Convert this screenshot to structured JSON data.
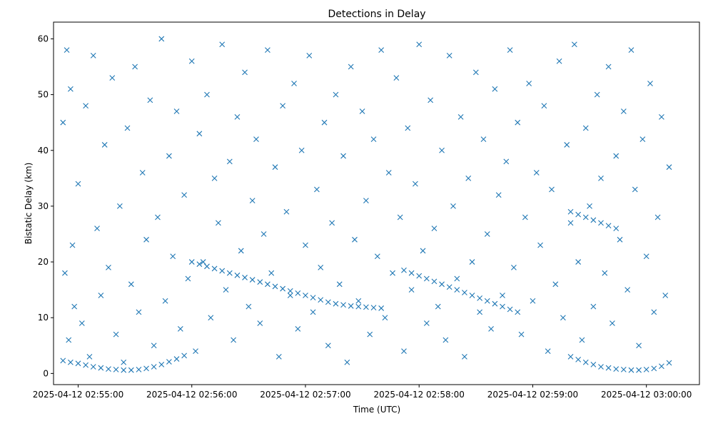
{
  "chart_data": {
    "type": "scatter",
    "title": "Detections in Delay",
    "xlabel": "Time (UTC)",
    "ylabel": "Bistatic Delay (km)",
    "x_unit": "UTC datetime",
    "xlim": [
      "2025-04-12 02:54:47",
      "2025-04-12 03:00:28"
    ],
    "ylim": [
      -2,
      63
    ],
    "x_ticks": [
      "2025-04-12 02:55:00",
      "2025-04-12 02:56:00",
      "2025-04-12 02:57:00",
      "2025-04-12 02:58:00",
      "2025-04-12 02:59:00",
      "2025-04-12 03:00:00"
    ],
    "y_ticks": [
      0,
      10,
      20,
      30,
      40,
      50,
      60
    ],
    "grid": false,
    "legend": "none",
    "marker": "x",
    "color": "#1f77b4",
    "series": [
      {
        "x": [
          "2025-04-12 02:54:52",
          "2025-04-12 02:54:53",
          "2025-04-12 02:54:54",
          "2025-04-12 02:54:55",
          "2025-04-12 02:54:56",
          "2025-04-12 02:54:57",
          "2025-04-12 02:54:58",
          "2025-04-12 02:55:00",
          "2025-04-12 02:55:02",
          "2025-04-12 02:55:04",
          "2025-04-12 02:55:06",
          "2025-04-12 02:55:08",
          "2025-04-12 02:55:10",
          "2025-04-12 02:55:12",
          "2025-04-12 02:55:14",
          "2025-04-12 02:55:16",
          "2025-04-12 02:55:18",
          "2025-04-12 02:55:20",
          "2025-04-12 02:55:22",
          "2025-04-12 02:55:24",
          "2025-04-12 02:55:26",
          "2025-04-12 02:55:28",
          "2025-04-12 02:55:30",
          "2025-04-12 02:55:32",
          "2025-04-12 02:55:34",
          "2025-04-12 02:55:36",
          "2025-04-12 02:55:38",
          "2025-04-12 02:55:40",
          "2025-04-12 02:55:42",
          "2025-04-12 02:55:44",
          "2025-04-12 02:55:46",
          "2025-04-12 02:55:48",
          "2025-04-12 02:55:50",
          "2025-04-12 02:55:52",
          "2025-04-12 02:55:54",
          "2025-04-12 02:55:56",
          "2025-04-12 02:55:58",
          "2025-04-12 02:56:00",
          "2025-04-12 02:56:02",
          "2025-04-12 02:56:04",
          "2025-04-12 02:56:06",
          "2025-04-12 02:56:08",
          "2025-04-12 02:56:10",
          "2025-04-12 02:56:12",
          "2025-04-12 02:56:14",
          "2025-04-12 02:56:16",
          "2025-04-12 02:56:18",
          "2025-04-12 02:56:20",
          "2025-04-12 02:56:22",
          "2025-04-12 02:56:24",
          "2025-04-12 02:56:26",
          "2025-04-12 02:56:28",
          "2025-04-12 02:56:30",
          "2025-04-12 02:56:32",
          "2025-04-12 02:56:34",
          "2025-04-12 02:56:36",
          "2025-04-12 02:56:38",
          "2025-04-12 02:56:40",
          "2025-04-12 02:56:42",
          "2025-04-12 02:56:44",
          "2025-04-12 02:56:46",
          "2025-04-12 02:56:48",
          "2025-04-12 02:56:50",
          "2025-04-12 02:56:52",
          "2025-04-12 02:56:54",
          "2025-04-12 02:56:56",
          "2025-04-12 02:56:58",
          "2025-04-12 02:57:00",
          "2025-04-12 02:57:02",
          "2025-04-12 02:57:04",
          "2025-04-12 02:57:06",
          "2025-04-12 02:57:08",
          "2025-04-12 02:57:10",
          "2025-04-12 02:57:12",
          "2025-04-12 02:57:14",
          "2025-04-12 02:57:16",
          "2025-04-12 02:57:18",
          "2025-04-12 02:57:20",
          "2025-04-12 02:57:22",
          "2025-04-12 02:57:24",
          "2025-04-12 02:57:26",
          "2025-04-12 02:57:28",
          "2025-04-12 02:57:30",
          "2025-04-12 02:57:32",
          "2025-04-12 02:57:34",
          "2025-04-12 02:57:36",
          "2025-04-12 02:57:38",
          "2025-04-12 02:57:40",
          "2025-04-12 02:57:42",
          "2025-04-12 02:57:44",
          "2025-04-12 02:57:46",
          "2025-04-12 02:57:48",
          "2025-04-12 02:57:50",
          "2025-04-12 02:57:52",
          "2025-04-12 02:57:54",
          "2025-04-12 02:57:56",
          "2025-04-12 02:57:58",
          "2025-04-12 02:58:00",
          "2025-04-12 02:58:02",
          "2025-04-12 02:58:04",
          "2025-04-12 02:58:06",
          "2025-04-12 02:58:08",
          "2025-04-12 02:58:10",
          "2025-04-12 02:58:12",
          "2025-04-12 02:58:14",
          "2025-04-12 02:58:16",
          "2025-04-12 02:58:18",
          "2025-04-12 02:58:20",
          "2025-04-12 02:58:22",
          "2025-04-12 02:58:24",
          "2025-04-12 02:58:26",
          "2025-04-12 02:58:28",
          "2025-04-12 02:58:30",
          "2025-04-12 02:58:32",
          "2025-04-12 02:58:34",
          "2025-04-12 02:58:36",
          "2025-04-12 02:58:38",
          "2025-04-12 02:58:40",
          "2025-04-12 02:58:42",
          "2025-04-12 02:58:44",
          "2025-04-12 02:58:46",
          "2025-04-12 02:58:48",
          "2025-04-12 02:58:50",
          "2025-04-12 02:58:52",
          "2025-04-12 02:58:54",
          "2025-04-12 02:58:56",
          "2025-04-12 02:58:58",
          "2025-04-12 02:59:00",
          "2025-04-12 02:59:02",
          "2025-04-12 02:59:04",
          "2025-04-12 02:59:06",
          "2025-04-12 02:59:08",
          "2025-04-12 02:59:10",
          "2025-04-12 02:59:12",
          "2025-04-12 02:59:14",
          "2025-04-12 02:59:16",
          "2025-04-12 02:59:18",
          "2025-04-12 02:59:20",
          "2025-04-12 02:59:22",
          "2025-04-12 02:59:24",
          "2025-04-12 02:59:26",
          "2025-04-12 02:59:28",
          "2025-04-12 02:59:30",
          "2025-04-12 02:59:32",
          "2025-04-12 02:59:34",
          "2025-04-12 02:59:36",
          "2025-04-12 02:59:38",
          "2025-04-12 02:59:40",
          "2025-04-12 02:59:42",
          "2025-04-12 02:59:44",
          "2025-04-12 02:59:46",
          "2025-04-12 02:59:48",
          "2025-04-12 02:59:50",
          "2025-04-12 02:59:52",
          "2025-04-12 02:59:54",
          "2025-04-12 02:59:56",
          "2025-04-12 02:59:58",
          "2025-04-12 03:00:00",
          "2025-04-12 03:00:02",
          "2025-04-12 03:00:04",
          "2025-04-12 03:00:06",
          "2025-04-12 03:00:08",
          "2025-04-12 03:00:10",
          "2025-04-12 03:00:12",
          "2025-04-12 02:56:00",
          "2025-04-12 02:56:04",
          "2025-04-12 02:56:08",
          "2025-04-12 02:56:12",
          "2025-04-12 02:56:16",
          "2025-04-12 02:56:20",
          "2025-04-12 02:56:24",
          "2025-04-12 02:56:28",
          "2025-04-12 02:56:32",
          "2025-04-12 02:56:36",
          "2025-04-12 02:56:40",
          "2025-04-12 02:56:44",
          "2025-04-12 02:56:48",
          "2025-04-12 02:56:52",
          "2025-04-12 02:56:56",
          "2025-04-12 02:57:00",
          "2025-04-12 02:57:04",
          "2025-04-12 02:57:08",
          "2025-04-12 02:57:12",
          "2025-04-12 02:57:16",
          "2025-04-12 02:57:20",
          "2025-04-12 02:57:24",
          "2025-04-12 02:57:28",
          "2025-04-12 02:57:32",
          "2025-04-12 02:57:36",
          "2025-04-12 02:57:40",
          "2025-04-12 02:57:52",
          "2025-04-12 02:57:56",
          "2025-04-12 02:58:00",
          "2025-04-12 02:58:04",
          "2025-04-12 02:58:08",
          "2025-04-12 02:58:12",
          "2025-04-12 02:58:16",
          "2025-04-12 02:58:20",
          "2025-04-12 02:58:24",
          "2025-04-12 02:58:28",
          "2025-04-12 02:58:32",
          "2025-04-12 02:58:36",
          "2025-04-12 02:58:40",
          "2025-04-12 02:58:44",
          "2025-04-12 02:58:48",
          "2025-04-12 02:58:52",
          "2025-04-12 02:59:20",
          "2025-04-12 02:59:24",
          "2025-04-12 02:59:28",
          "2025-04-12 02:59:32",
          "2025-04-12 02:59:36",
          "2025-04-12 02:59:40",
          "2025-04-12 02:59:44"
        ],
        "y": [
          45,
          18,
          58,
          6,
          51,
          23,
          12,
          34,
          9,
          48,
          3,
          57,
          26,
          14,
          41,
          19,
          53,
          7,
          30,
          2,
          44,
          16,
          55,
          11,
          36,
          24,
          49,
          5,
          28,
          60,
          13,
          39,
          21,
          47,
          8,
          32,
          17,
          56,
          4,
          43,
          20,
          50,
          10,
          35,
          27,
          59,
          15,
          38,
          6,
          46,
          22,
          54,
          12,
          31,
          42,
          9,
          25,
          58,
          18,
          37,
          3,
          48,
          29,
          14,
          52,
          8,
          40,
          23,
          57,
          11,
          33,
          19,
          45,
          5,
          27,
          50,
          16,
          39,
          2,
          55,
          24,
          13,
          47,
          31,
          7,
          42,
          21,
          58,
          10,
          36,
          18,
          53,
          28,
          4,
          44,
          15,
          34,
          59,
          22,
          9,
          49,
          26,
          12,
          40,
          6,
          57,
          30,
          17,
          46,
          3,
          35,
          20,
          54,
          11,
          42,
          25,
          8,
          51,
          32,
          14,
          38,
          58,
          19,
          45,
          7,
          28,
          52,
          13,
          36,
          23,
          48,
          4,
          33,
          16,
          56,
          10,
          41,
          27,
          59,
          20,
          6,
          44,
          30,
          12,
          50,
          35,
          18,
          55,
          9,
          39,
          24,
          47,
          15,
          58,
          33,
          5,
          42,
          21,
          52,
          11,
          28,
          46,
          14,
          37,
          20,
          19.6,
          19.2,
          18.8,
          18.4,
          18,
          17.6,
          17.2,
          16.8,
          16.4,
          16,
          15.6,
          15.2,
          14.8,
          14.4,
          14,
          13.6,
          13.2,
          12.8,
          12.5,
          12.3,
          12.1,
          12,
          11.9,
          11.8,
          11.7,
          18.5,
          18,
          17.5,
          17,
          16.5,
          16,
          15.5,
          15,
          14.5,
          14,
          13.5,
          13,
          12.5,
          12,
          11.5,
          11,
          29,
          28.5,
          28,
          27.5,
          27,
          26.5,
          26
        ]
      },
      {
        "x": [
          "2025-04-12 02:54:52",
          "2025-04-12 02:54:56",
          "2025-04-12 02:55:00",
          "2025-04-12 02:55:04",
          "2025-04-12 02:55:08",
          "2025-04-12 02:55:12",
          "2025-04-12 02:55:16",
          "2025-04-12 02:55:20",
          "2025-04-12 02:55:24",
          "2025-04-12 02:55:28",
          "2025-04-12 02:55:32",
          "2025-04-12 02:55:36",
          "2025-04-12 02:55:40",
          "2025-04-12 02:55:44",
          "2025-04-12 02:55:48",
          "2025-04-12 02:55:52",
          "2025-04-12 02:55:56",
          "2025-04-12 02:59:20",
          "2025-04-12 02:59:24",
          "2025-04-12 02:59:28",
          "2025-04-12 02:59:32",
          "2025-04-12 02:59:36",
          "2025-04-12 02:59:40",
          "2025-04-12 02:59:44",
          "2025-04-12 02:59:48",
          "2025-04-12 02:59:52",
          "2025-04-12 02:59:56",
          "2025-04-12 03:00:00",
          "2025-04-12 03:00:04",
          "2025-04-12 03:00:08",
          "2025-04-12 03:00:12"
        ],
        "y": [
          2.3,
          2.0,
          1.8,
          1.5,
          1.2,
          1.0,
          0.8,
          0.7,
          0.6,
          0.6,
          0.7,
          0.9,
          1.2,
          1.6,
          2.1,
          2.6,
          3.2,
          3.0,
          2.5,
          2.0,
          1.6,
          1.2,
          1.0,
          0.8,
          0.7,
          0.6,
          0.6,
          0.7,
          0.9,
          1.3,
          1.9
        ]
      }
    ]
  }
}
